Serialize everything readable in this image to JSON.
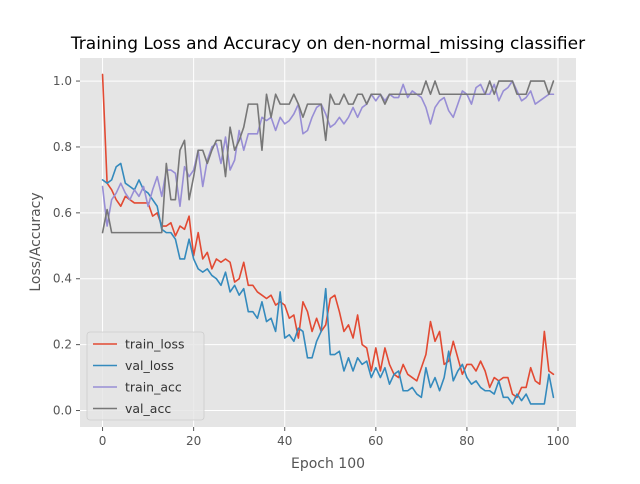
{
  "chart_data": {
    "type": "line",
    "title": "Training Loss and Accuracy on den-normal_missing classifier",
    "xlabel": "Epoch 100",
    "ylabel": "Loss/Accuracy",
    "xlim": [
      -4.95,
      103.95
    ],
    "ylim": [
      -0.05,
      1.07
    ],
    "xticks": [
      0,
      20,
      40,
      60,
      80,
      100
    ],
    "yticks": [
      0.0,
      0.2,
      0.4,
      0.6,
      0.8,
      1.0
    ],
    "xtick_labels": [
      "0",
      "20",
      "40",
      "60",
      "80",
      "100"
    ],
    "ytick_labels": [
      "0.0",
      "0.2",
      "0.4",
      "0.6",
      "0.8",
      "1.0"
    ],
    "grid": true,
    "style": "ggplot",
    "legend_position": "lower-left",
    "x": [
      0,
      1,
      2,
      3,
      4,
      5,
      6,
      7,
      8,
      9,
      10,
      11,
      12,
      13,
      14,
      15,
      16,
      17,
      18,
      19,
      20,
      21,
      22,
      23,
      24,
      25,
      26,
      27,
      28,
      29,
      30,
      31,
      32,
      33,
      34,
      35,
      36,
      37,
      38,
      39,
      40,
      41,
      42,
      43,
      44,
      45,
      46,
      47,
      48,
      49,
      50,
      51,
      52,
      53,
      54,
      55,
      56,
      57,
      58,
      59,
      60,
      61,
      62,
      63,
      64,
      65,
      66,
      67,
      68,
      69,
      70,
      71,
      72,
      73,
      74,
      75,
      76,
      77,
      78,
      79,
      80,
      81,
      82,
      83,
      84,
      85,
      86,
      87,
      88,
      89,
      90,
      91,
      92,
      93,
      94,
      95,
      96,
      97,
      98,
      99
    ],
    "series": [
      {
        "name": "train_loss",
        "color": "#E24A33",
        "values": [
          1.02,
          0.69,
          0.67,
          0.64,
          0.62,
          0.65,
          0.64,
          0.63,
          0.63,
          0.63,
          0.63,
          0.59,
          0.6,
          0.56,
          0.56,
          0.57,
          0.53,
          0.56,
          0.55,
          0.59,
          0.47,
          0.54,
          0.46,
          0.48,
          0.43,
          0.46,
          0.45,
          0.46,
          0.45,
          0.39,
          0.4,
          0.45,
          0.38,
          0.38,
          0.36,
          0.35,
          0.34,
          0.35,
          0.32,
          0.33,
          0.32,
          0.28,
          0.29,
          0.22,
          0.33,
          0.3,
          0.24,
          0.28,
          0.24,
          0.26,
          0.34,
          0.35,
          0.3,
          0.24,
          0.26,
          0.22,
          0.29,
          0.2,
          0.19,
          0.12,
          0.19,
          0.12,
          0.19,
          0.14,
          0.11,
          0.1,
          0.14,
          0.11,
          0.1,
          0.09,
          0.13,
          0.17,
          0.27,
          0.21,
          0.24,
          0.14,
          0.15,
          0.21,
          0.16,
          0.11,
          0.14,
          0.14,
          0.12,
          0.15,
          0.12,
          0.07,
          0.1,
          0.09,
          0.1,
          0.1,
          0.05,
          0.04,
          0.07,
          0.07,
          0.13,
          0.09,
          0.08,
          0.24,
          0.12,
          0.11
        ]
      },
      {
        "name": "val_loss",
        "color": "#348ABD",
        "values": [
          0.7,
          0.69,
          0.7,
          0.74,
          0.75,
          0.69,
          0.68,
          0.67,
          0.7,
          0.67,
          0.66,
          0.64,
          0.62,
          0.55,
          0.54,
          0.54,
          0.52,
          0.46,
          0.46,
          0.52,
          0.46,
          0.43,
          0.42,
          0.43,
          0.41,
          0.4,
          0.38,
          0.42,
          0.36,
          0.38,
          0.35,
          0.37,
          0.3,
          0.3,
          0.28,
          0.33,
          0.27,
          0.28,
          0.24,
          0.36,
          0.22,
          0.23,
          0.21,
          0.25,
          0.24,
          0.16,
          0.16,
          0.21,
          0.24,
          0.37,
          0.17,
          0.17,
          0.18,
          0.12,
          0.16,
          0.12,
          0.16,
          0.14,
          0.15,
          0.1,
          0.13,
          0.1,
          0.13,
          0.08,
          0.11,
          0.12,
          0.06,
          0.06,
          0.07,
          0.05,
          0.04,
          0.13,
          0.07,
          0.1,
          0.06,
          0.1,
          0.18,
          0.09,
          0.12,
          0.14,
          0.1,
          0.08,
          0.09,
          0.07,
          0.06,
          0.06,
          0.05,
          0.09,
          0.04,
          0.04,
          0.02,
          0.05,
          0.03,
          0.05,
          0.02,
          0.02,
          0.02,
          0.02,
          0.11,
          0.04
        ]
      },
      {
        "name": "train_acc",
        "color": "#988ED5",
        "values": [
          0.68,
          0.56,
          0.64,
          0.66,
          0.69,
          0.66,
          0.64,
          0.67,
          0.65,
          0.68,
          0.62,
          0.67,
          0.71,
          0.65,
          0.73,
          0.73,
          0.72,
          0.62,
          0.74,
          0.71,
          0.73,
          0.79,
          0.68,
          0.76,
          0.8,
          0.81,
          0.75,
          0.83,
          0.73,
          0.76,
          0.85,
          0.79,
          0.84,
          0.84,
          0.84,
          0.89,
          0.88,
          0.89,
          0.85,
          0.89,
          0.87,
          0.88,
          0.9,
          0.93,
          0.84,
          0.85,
          0.89,
          0.92,
          0.93,
          0.9,
          0.86,
          0.87,
          0.89,
          0.87,
          0.89,
          0.92,
          0.89,
          0.92,
          0.93,
          0.96,
          0.94,
          0.96,
          0.94,
          0.96,
          0.95,
          0.95,
          0.99,
          0.95,
          0.97,
          0.96,
          0.95,
          0.92,
          0.87,
          0.92,
          0.94,
          0.95,
          0.91,
          0.89,
          0.93,
          0.97,
          0.96,
          0.93,
          0.98,
          0.99,
          0.96,
          0.96,
          0.99,
          0.94,
          0.97,
          0.98,
          1.0,
          0.97,
          0.94,
          0.95,
          0.97,
          0.93,
          0.94,
          0.95,
          0.96,
          0.96
        ]
      },
      {
        "name": "val_acc",
        "color": "#777777",
        "values": [
          0.54,
          0.61,
          0.54,
          0.54,
          0.54,
          0.54,
          0.54,
          0.54,
          0.54,
          0.54,
          0.54,
          0.54,
          0.54,
          0.54,
          0.75,
          0.64,
          0.64,
          0.79,
          0.82,
          0.64,
          0.71,
          0.79,
          0.79,
          0.75,
          0.79,
          0.82,
          0.82,
          0.71,
          0.86,
          0.79,
          0.82,
          0.86,
          0.93,
          0.93,
          0.93,
          0.79,
          0.96,
          0.89,
          0.96,
          0.93,
          0.93,
          0.93,
          0.96,
          0.93,
          0.89,
          0.93,
          0.93,
          0.93,
          0.93,
          0.82,
          0.96,
          0.93,
          0.93,
          0.96,
          0.93,
          0.93,
          0.96,
          0.96,
          0.93,
          0.96,
          0.96,
          0.96,
          0.93,
          0.96,
          0.96,
          0.96,
          0.96,
          0.96,
          0.96,
          0.96,
          0.96,
          1.0,
          0.96,
          1.0,
          0.96,
          0.96,
          0.96,
          0.96,
          0.96,
          0.96,
          0.96,
          0.96,
          0.96,
          0.96,
          0.96,
          1.0,
          0.96,
          1.0,
          1.0,
          1.0,
          1.0,
          0.96,
          0.96,
          0.96,
          1.0,
          1.0,
          1.0,
          1.0,
          0.96,
          1.0
        ]
      }
    ]
  }
}
